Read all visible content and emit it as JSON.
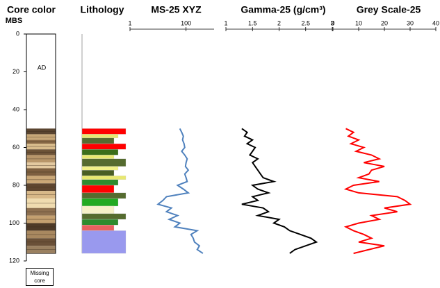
{
  "chart_data": {
    "type": "well-log",
    "depth_label": "MBS",
    "ylim": [
      0,
      120
    ],
    "yticks": [
      0,
      20,
      40,
      60,
      80,
      100,
      120
    ],
    "depth": [
      50,
      52,
      54,
      56,
      58,
      60,
      62,
      64,
      66,
      68,
      70,
      72,
      74,
      76,
      78,
      80,
      82,
      84,
      86,
      88,
      90,
      92,
      94,
      96,
      98,
      100,
      102,
      104,
      106,
      108,
      110,
      112,
      114,
      116
    ],
    "core_color": {
      "title": "Core color",
      "annotation": "AD",
      "legend": "Missing core",
      "top": 0,
      "bottom": 116,
      "bands": [
        {
          "top": 50,
          "bottom": 53,
          "color": "#5a4530"
        },
        {
          "top": 53,
          "bottom": 56,
          "color": "#c8a878"
        },
        {
          "top": 56,
          "bottom": 58,
          "color": "#8b6b48"
        },
        {
          "top": 58,
          "bottom": 61,
          "color": "#d9bc8c"
        },
        {
          "top": 61,
          "bottom": 64,
          "color": "#6e5438"
        },
        {
          "top": 64,
          "bottom": 68,
          "color": "#b8966a"
        },
        {
          "top": 68,
          "bottom": 71,
          "color": "#e3c9a0"
        },
        {
          "top": 71,
          "bottom": 75,
          "color": "#7d5f40"
        },
        {
          "top": 75,
          "bottom": 79,
          "color": "#caa878"
        },
        {
          "top": 79,
          "bottom": 83,
          "color": "#5e4630"
        },
        {
          "top": 83,
          "bottom": 87,
          "color": "#d8b888"
        },
        {
          "top": 87,
          "bottom": 92,
          "color": "#f0dcb0"
        },
        {
          "top": 92,
          "bottom": 96,
          "color": "#8e7050"
        },
        {
          "top": 96,
          "bottom": 100,
          "color": "#c4a070"
        },
        {
          "top": 100,
          "bottom": 104,
          "color": "#4e3a28"
        },
        {
          "top": 104,
          "bottom": 108,
          "color": "#a88860"
        },
        {
          "top": 108,
          "bottom": 112,
          "color": "#6a5038"
        },
        {
          "top": 112,
          "bottom": 116,
          "color": "#9a8060"
        }
      ]
    },
    "lithology": {
      "title": "Lithology",
      "intervals": [
        {
          "top": 50,
          "bottom": 53,
          "color": "#ff0000"
        },
        {
          "top": 53,
          "bottom": 55,
          "color": "#e8e870"
        },
        {
          "top": 55,
          "bottom": 58,
          "color": "#556b2f"
        },
        {
          "top": 58,
          "bottom": 61,
          "color": "#ff0000"
        },
        {
          "top": 61,
          "bottom": 64,
          "color": "#3b6e1a"
        },
        {
          "top": 64,
          "bottom": 66,
          "color": "#e8e870"
        },
        {
          "top": 66,
          "bottom": 70,
          "color": "#556b2f"
        },
        {
          "top": 70,
          "bottom": 72,
          "color": "#f0f088"
        },
        {
          "top": 72,
          "bottom": 75,
          "color": "#4a5e24"
        },
        {
          "top": 75,
          "bottom": 77,
          "color": "#e8e870"
        },
        {
          "top": 77,
          "bottom": 80,
          "color": "#2e8b2e"
        },
        {
          "top": 80,
          "bottom": 84,
          "color": "#ff0000"
        },
        {
          "top": 84,
          "bottom": 87,
          "color": "#556b2f"
        },
        {
          "top": 87,
          "bottom": 91,
          "color": "#22aa22"
        },
        {
          "top": 91,
          "bottom": 95,
          "color": "#f5f0c8"
        },
        {
          "top": 95,
          "bottom": 98,
          "color": "#556b2f"
        },
        {
          "top": 98,
          "bottom": 101,
          "color": "#2e8b2e"
        },
        {
          "top": 101,
          "bottom": 104,
          "color": "#e86060"
        },
        {
          "top": 104,
          "bottom": 116,
          "color": "#9999ee"
        }
      ]
    },
    "logs": [
      {
        "title": "MS-25 XYZ",
        "color": "#4f81bd",
        "log": true,
        "xlim": [
          1,
          1000
        ],
        "xticks": [
          1,
          100
        ],
        "values": [
          60,
          70,
          80,
          75,
          85,
          90,
          70,
          90,
          110,
          100,
          95,
          120,
          90,
          100,
          110,
          50,
          80,
          120,
          20,
          15,
          10,
          30,
          20,
          50,
          25,
          60,
          40,
          250,
          150,
          180,
          200,
          300,
          250,
          400
        ]
      },
      {
        "title": "Gamma-25 (g/cm³)",
        "color": "#000000",
        "log": false,
        "xlim": [
          1,
          3
        ],
        "xticks": [
          1,
          1.5,
          2,
          2.5,
          3
        ],
        "values": [
          1.3,
          1.4,
          1.35,
          1.5,
          1.4,
          1.55,
          1.5,
          1.45,
          1.6,
          1.5,
          1.55,
          1.6,
          1.65,
          1.7,
          1.9,
          1.5,
          1.6,
          1.8,
          1.5,
          1.6,
          1.3,
          1.7,
          1.8,
          1.6,
          2.0,
          1.9,
          2.1,
          2.2,
          2.4,
          2.6,
          2.7,
          2.5,
          2.3,
          2.2
        ]
      },
      {
        "title": "Grey Scale-25",
        "color": "#ff0000",
        "log": false,
        "xlim": [
          0,
          40
        ],
        "xticks": [
          0,
          10,
          20,
          30,
          40
        ],
        "values": [
          5,
          8,
          6,
          10,
          7,
          12,
          9,
          15,
          18,
          12,
          20,
          15,
          14,
          10,
          18,
          8,
          5,
          10,
          25,
          28,
          30,
          20,
          25,
          15,
          18,
          10,
          5,
          8,
          12,
          15,
          10,
          20,
          14,
          8
        ]
      }
    ]
  }
}
